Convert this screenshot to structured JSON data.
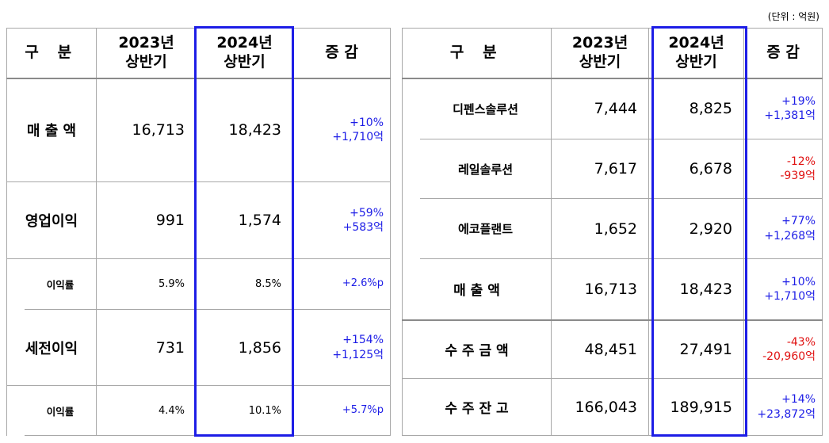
{
  "unit_note": "(단위 : 억원)",
  "left": {
    "headers": {
      "category": "구  분",
      "prev": "2023년\n상반기",
      "curr": "2024년\n상반기",
      "change": "증 감"
    },
    "rows": [
      {
        "label": "매 출 액",
        "prev": "16,713",
        "curr": "18,423",
        "change_pct": "+10%",
        "change_abs": "+1,710억",
        "sign": "pos"
      },
      {
        "label": "영업이익",
        "prev": "991",
        "curr": "1,574",
        "change_pct": "+59%",
        "change_abs": "+583억",
        "sign": "pos"
      },
      {
        "label": "이익률",
        "prev": "5.9%",
        "curr": "8.5%",
        "change_pct": "+2.6%p",
        "change_abs": "",
        "sign": "pos"
      },
      {
        "label": "세전이익",
        "prev": "731",
        "curr": "1,856",
        "change_pct": "+154%",
        "change_abs": "+1,125억",
        "sign": "pos"
      },
      {
        "label": "이익률",
        "prev": "4.4%",
        "curr": "10.1%",
        "change_pct": "+5.7%p",
        "change_abs": "",
        "sign": "pos"
      }
    ]
  },
  "right": {
    "headers": {
      "category": "구  분",
      "prev": "2023년\n상반기",
      "curr": "2024년\n상반기",
      "change": "증 감"
    },
    "rows": [
      {
        "label": "디펜스솔루션",
        "prev": "7,444",
        "curr": "8,825",
        "change_pct": "+19%",
        "change_abs": "+1,381억",
        "sign": "pos"
      },
      {
        "label": "레일솔루션",
        "prev": "7,617",
        "curr": "6,678",
        "change_pct": "-12%",
        "change_abs": "-939억",
        "sign": "neg"
      },
      {
        "label": "에코플랜트",
        "prev": "1,652",
        "curr": "2,920",
        "change_pct": "+77%",
        "change_abs": "+1,268억",
        "sign": "pos"
      },
      {
        "label": "매  출  액",
        "prev": "16,713",
        "curr": "18,423",
        "change_pct": "+10%",
        "change_abs": "+1,710억",
        "sign": "pos"
      },
      {
        "label": "수 주 금 액",
        "prev": "48,451",
        "curr": "27,491",
        "change_pct": "-43%",
        "change_abs": "-20,960억",
        "sign": "neg"
      },
      {
        "label": "수 주 잔 고",
        "prev": "166,043",
        "curr": "189,915",
        "change_pct": "+14%",
        "change_abs": "+23,872억",
        "sign": "pos"
      }
    ]
  },
  "colors": {
    "highlight": "#1d1de6",
    "positive": "#1d1de6",
    "negative": "#e01010"
  }
}
